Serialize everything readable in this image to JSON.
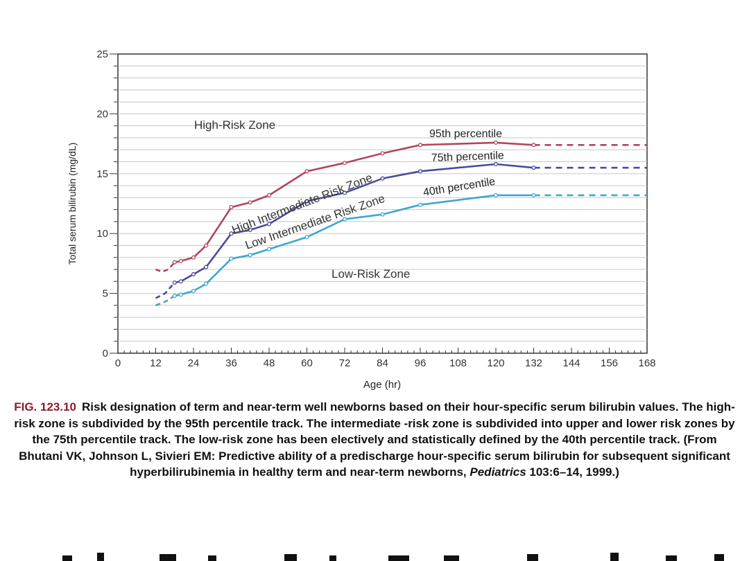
{
  "chart_data": {
    "type": "line",
    "xlabel": "Age (hr)",
    "ylabel": "Total serum bilirubin (mg/dL)",
    "xlim": [
      0,
      168
    ],
    "ylim": [
      0,
      25
    ],
    "x_ticks": [
      0,
      12,
      24,
      36,
      48,
      60,
      72,
      84,
      96,
      108,
      120,
      132,
      144,
      156,
      168
    ],
    "y_ticks": [
      0,
      5,
      10,
      15,
      20,
      25
    ],
    "grid": "horizontal, every 1 mg/dL",
    "zones": [
      "High-Risk Zone",
      "High Intermediate Risk Zone",
      "Low Intermediate Risk Zone",
      "Low-Risk Zone"
    ],
    "series": [
      {
        "name": "95th percentile",
        "color": "#b0465e",
        "dashed_start": [
          [
            12,
            7.0
          ],
          [
            14,
            6.8
          ],
          [
            16,
            7.0
          ],
          [
            18,
            7.6
          ]
        ],
        "x": [
          18,
          20,
          24,
          28,
          36,
          42,
          48,
          60,
          72,
          84,
          96,
          120,
          132
        ],
        "values": [
          7.6,
          7.7,
          8.0,
          9.0,
          12.2,
          12.6,
          13.2,
          15.2,
          15.9,
          16.7,
          17.4,
          17.6,
          17.4
        ],
        "dashed_end": [
          [
            132,
            17.4
          ],
          [
            168,
            17.4
          ]
        ]
      },
      {
        "name": "75th percentile",
        "color": "#4a4aa0",
        "dashed_start": [
          [
            12,
            4.6
          ],
          [
            15,
            5.0
          ],
          [
            18,
            5.9
          ]
        ],
        "x": [
          18,
          20,
          24,
          28,
          36,
          42,
          48,
          60,
          72,
          84,
          96,
          120,
          132
        ],
        "values": [
          5.9,
          6.0,
          6.6,
          7.2,
          10.0,
          10.3,
          10.8,
          12.7,
          13.4,
          14.6,
          15.2,
          15.8,
          15.5
        ],
        "dashed_end": [
          [
            132,
            15.5
          ],
          [
            168,
            15.5
          ]
        ]
      },
      {
        "name": "40th percentile",
        "color": "#3ea6d0",
        "dashed_start": [
          [
            12,
            4.0
          ],
          [
            15,
            4.3
          ],
          [
            18,
            4.8
          ]
        ],
        "x": [
          18,
          20,
          24,
          28,
          36,
          42,
          48,
          60,
          72,
          84,
          96,
          120,
          132
        ],
        "values": [
          4.8,
          4.9,
          5.2,
          5.8,
          7.9,
          8.2,
          8.7,
          9.7,
          11.2,
          11.6,
          12.4,
          13.2,
          13.2
        ],
        "dashed_end": [
          [
            132,
            13.2
          ],
          [
            168,
            13.2
          ]
        ]
      }
    ]
  },
  "caption": {
    "fig_label": "FIG. 123.10",
    "text_before_journal": "Risk designation of term and near-term well newborns based on their hour-specific serum bilirubin values. The high-risk zone is subdivided by the 95th percentile track. The intermediate -risk zone is subdivided into upper and lower risk zones by the 75th percentile track. The low-risk zone has been electively and statistically defined by the 40th percentile track. (From Bhutani VK, Johnson L, Sivieri EM: Predictive ability of a predischarge hour-specific serum bilirubin for subsequent significant hyperbilirubinemia in healthy term and near-term newborns,",
    "journal": "Pediatrics",
    "text_after_journal": "103:6–14, 1999.)"
  }
}
